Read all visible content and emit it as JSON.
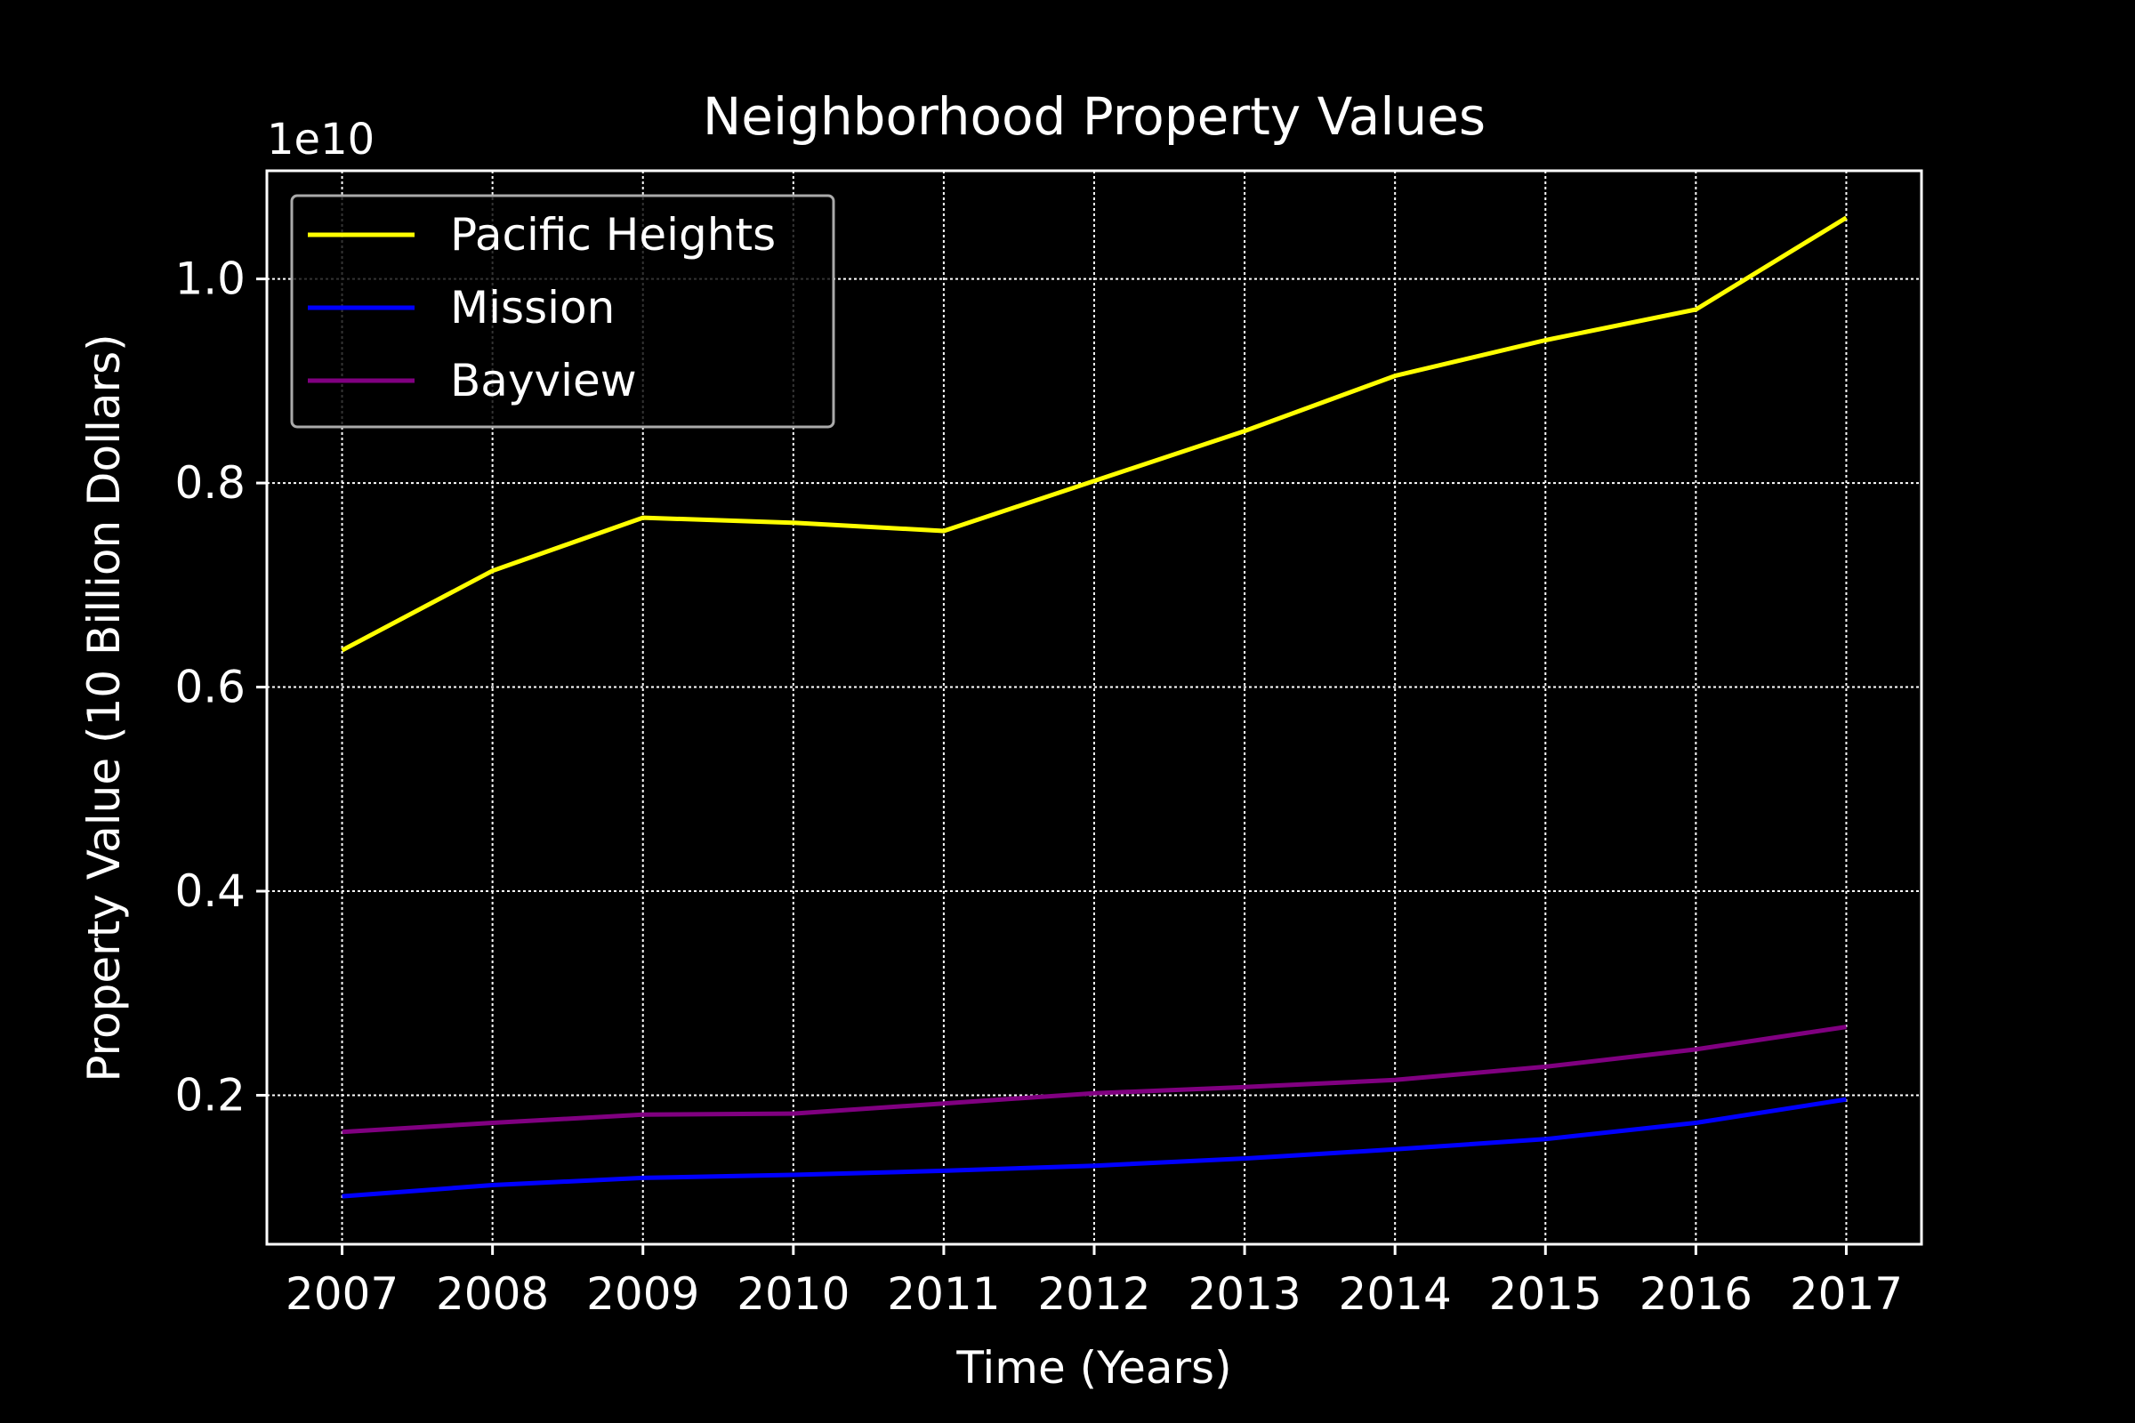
{
  "chart_data": {
    "type": "line",
    "title": "Neighborhood Property Values",
    "xlabel": "Time (Years)",
    "ylabel": "Property Value (10 Billion Dollars)",
    "offset_label": "1e10",
    "x": [
      2007,
      2008,
      2009,
      2010,
      2011,
      2012,
      2013,
      2014,
      2015,
      2016,
      2017
    ],
    "x_tick_labels": [
      "2007",
      "2008",
      "2009",
      "2010",
      "2011",
      "2012",
      "2013",
      "2014",
      "2015",
      "2016",
      "2017"
    ],
    "y_ticks": [
      0.2,
      0.4,
      0.6,
      0.8,
      1.0
    ],
    "y_tick_labels": [
      "0.2",
      "0.4",
      "0.6",
      "0.8",
      "1.0"
    ],
    "xlim": [
      2006.5,
      2017.5
    ],
    "ylim": [
      0.054,
      1.106
    ],
    "grid": true,
    "legend_position": "top-left",
    "background": "#000000",
    "foreground": "#ffffff",
    "series": [
      {
        "name": "Pacific Heights",
        "color": "#ffff00",
        "values": [
          0.636,
          0.714,
          0.766,
          0.761,
          0.753,
          0.802,
          0.851,
          0.905,
          0.94,
          0.97,
          1.06
        ]
      },
      {
        "name": "Mission",
        "color": "#0000ff",
        "values": [
          0.101,
          0.112,
          0.119,
          0.122,
          0.126,
          0.131,
          0.138,
          0.147,
          0.157,
          0.173,
          0.196
        ]
      },
      {
        "name": "Bayview",
        "color": "#800080",
        "values": [
          0.164,
          0.173,
          0.181,
          0.182,
          0.192,
          0.202,
          0.208,
          0.215,
          0.228,
          0.245,
          0.267
        ]
      }
    ]
  }
}
